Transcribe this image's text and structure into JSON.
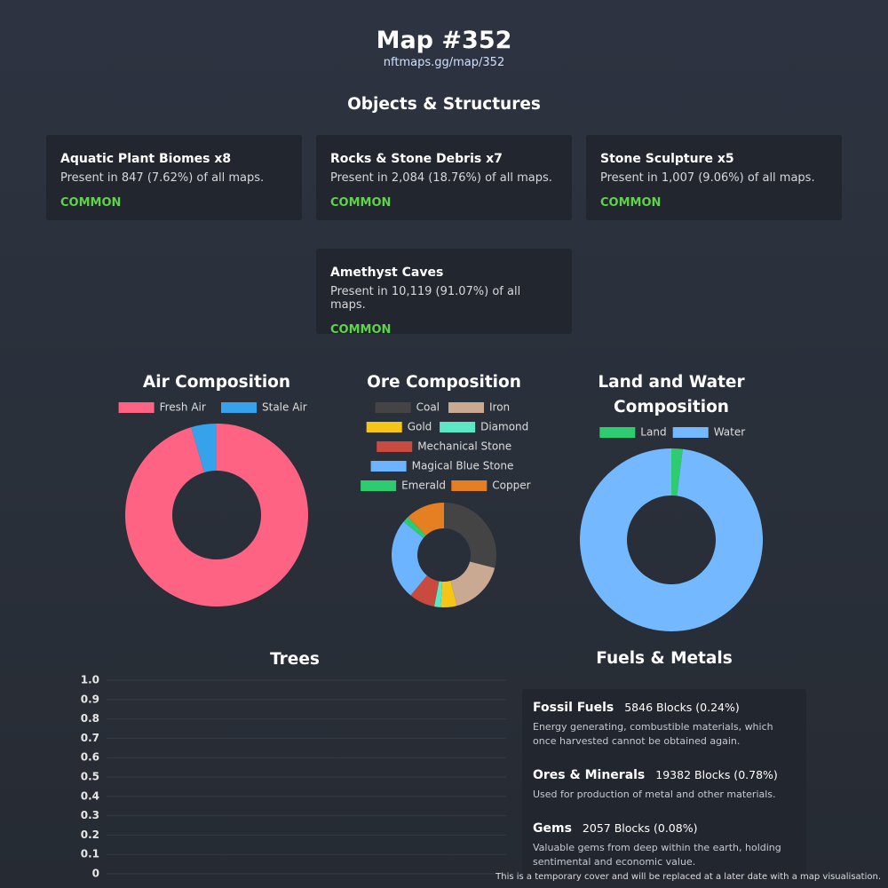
{
  "header": {
    "title": "Map #352",
    "link": "nftmaps.gg/map/352"
  },
  "objects": {
    "title": "Objects & Structures",
    "cards": [
      {
        "title": "Aquatic Plant Biomes x8",
        "description": "Present in 847 (7.62%) of all maps.",
        "rarity": "COMMON"
      },
      {
        "title": "Rocks & Stone Debris x7",
        "description": "Present in 2,084 (18.76%) of all maps.",
        "rarity": "COMMON"
      },
      {
        "title": "Stone Sculpture x5",
        "description": "Present in 1,007 (9.06%) of all maps.",
        "rarity": "COMMON"
      },
      {
        "title": "Amethyst Caves",
        "description": "Present in 10,119 (91.07%) of all maps.",
        "rarity": "COMMON"
      }
    ]
  },
  "chart_data": [
    {
      "type": "doughnut",
      "title": "Air Composition",
      "categories": [
        "Fresh Air",
        "Stale Air"
      ],
      "values": [
        95.5,
        4.5
      ],
      "colors": [
        "#ff6384",
        "#36a2eb"
      ]
    },
    {
      "type": "doughnut",
      "title": "Ore Composition",
      "categories": [
        "Coal",
        "Iron",
        "Gold",
        "Diamond",
        "Mechanical Stone",
        "Magical Blue Stone",
        "Emerald",
        "Copper"
      ],
      "values": [
        29,
        17,
        5,
        2,
        8,
        25,
        2,
        12
      ],
      "colors": [
        "#444444",
        "#c9a992",
        "#f5c518",
        "#5de8c5",
        "#c94a3f",
        "#6cb4ff",
        "#2ecc71",
        "#e67e22"
      ]
    },
    {
      "type": "doughnut",
      "title": "Land and Water Composition",
      "categories": [
        "Land",
        "Water"
      ],
      "values": [
        2,
        98
      ],
      "colors": [
        "#2ecc71",
        "#74b9ff"
      ]
    },
    {
      "type": "bar",
      "title": "Trees",
      "categories": [],
      "values": [],
      "ylim": [
        0,
        1
      ],
      "yticks": [
        0,
        0.1,
        0.2,
        0.3,
        0.4,
        0.5,
        0.6,
        0.7,
        0.8,
        0.9,
        {
          "value": 1,
          "label": "1.0"
        }
      ],
      "grid": true
    }
  ],
  "fuels": {
    "title": "Fuels & Metals",
    "items": [
      {
        "name": "Fossil Fuels",
        "amount": "5846 Blocks (0.24%)",
        "description": "Energy generating, combustible materials, which once harvested cannot be obtained again."
      },
      {
        "name": "Ores & Minerals",
        "amount": "19382 Blocks (0.78%)",
        "description": "Used for production of metal and other materials."
      },
      {
        "name": "Gems",
        "amount": "2057 Blocks (0.08%)",
        "description": "Valuable gems from deep within the earth, holding sentimental and economic value."
      }
    ]
  },
  "footer": "This is a temporary cover and will be replaced at a later date with a map visualisation."
}
